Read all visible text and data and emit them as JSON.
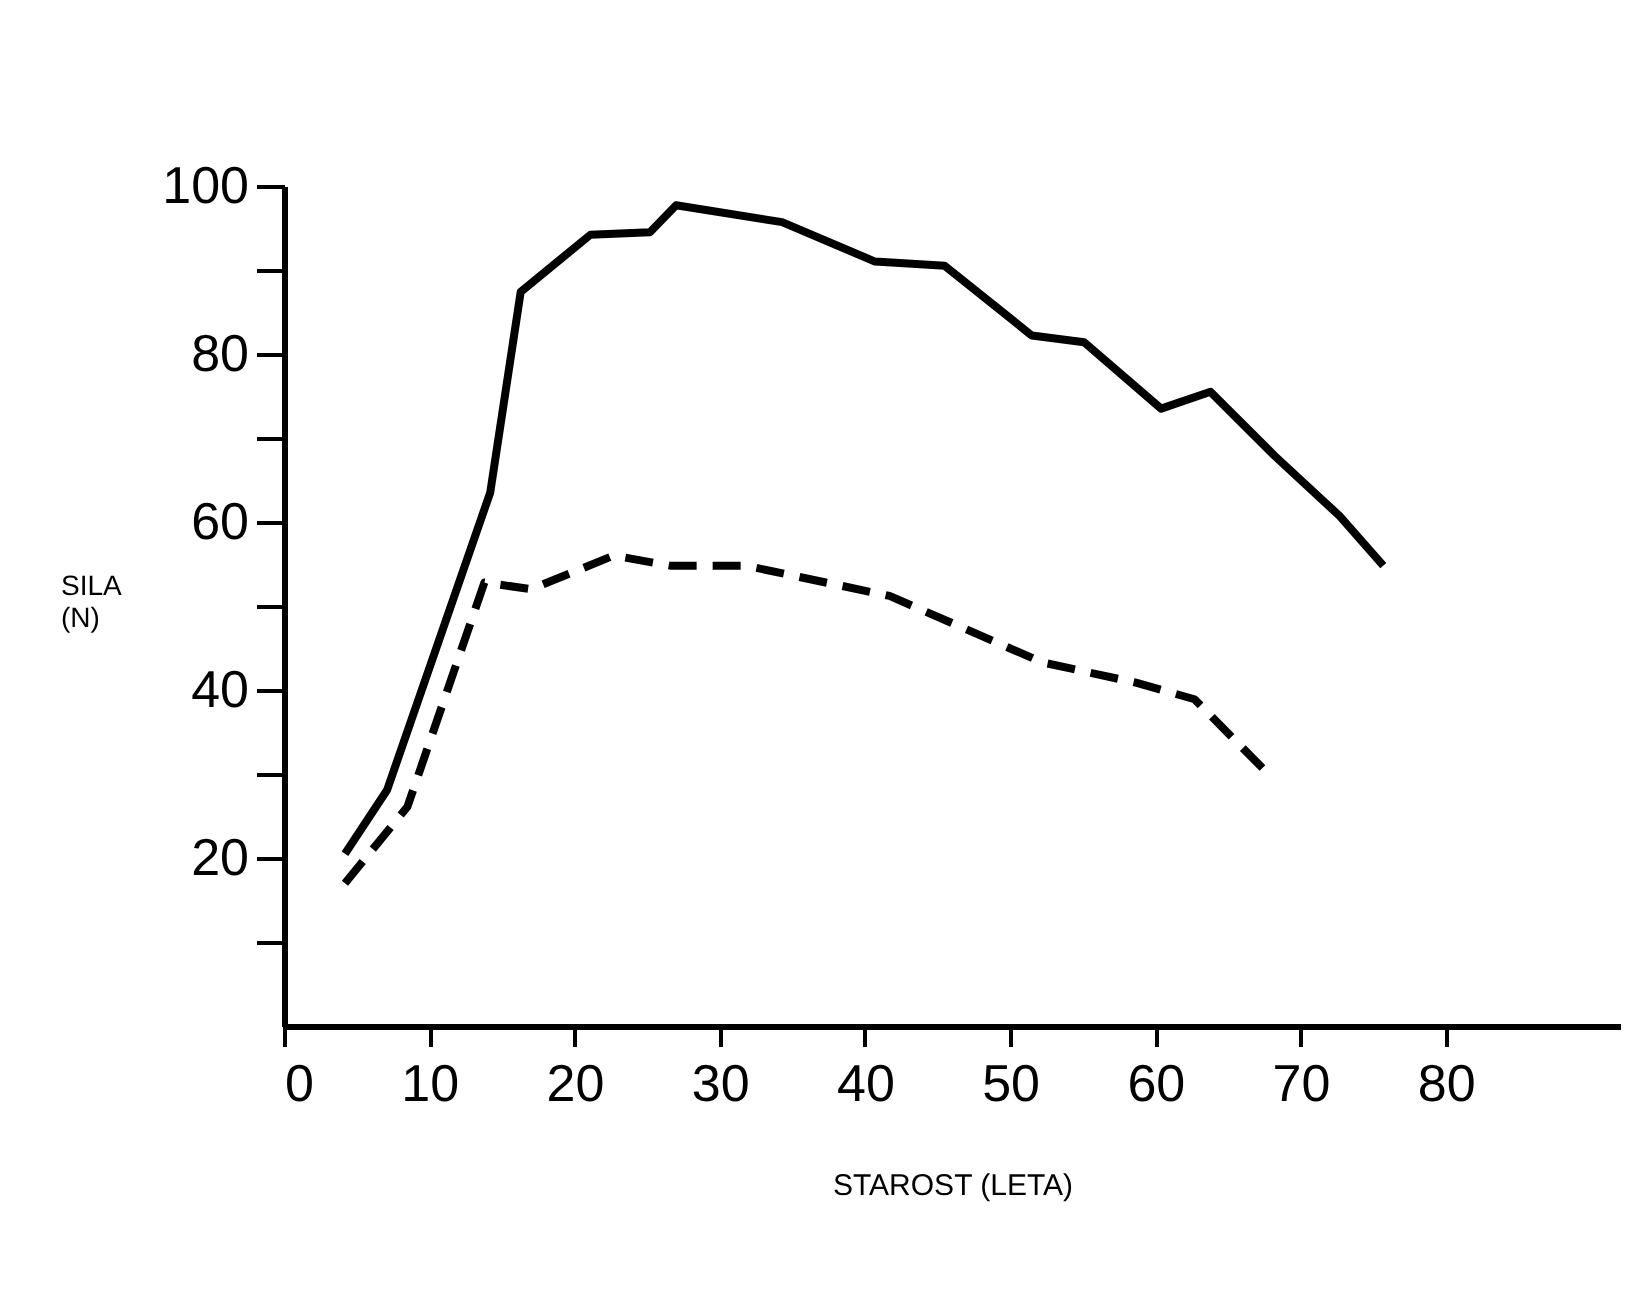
{
  "chart_data": {
    "type": "line",
    "xlabel": "STAROST (LETA)",
    "ylabel": "SILA (N)",
    "xlim": [
      0,
      92
    ],
    "ylim": [
      0,
      100
    ],
    "xticks": [
      0,
      10,
      20,
      30,
      40,
      50,
      60,
      70,
      80
    ],
    "yticks": [
      {
        "value": 10,
        "label": null
      },
      20,
      {
        "value": 30,
        "label": null
      },
      40,
      {
        "value": 50,
        "label": null
      },
      60,
      {
        "value": 70,
        "label": null
      },
      80,
      {
        "value": 90,
        "label": null
      },
      100
    ],
    "grid": false,
    "marker": "none",
    "series": [
      {
        "color": "#000000",
        "line_style": "solid",
        "x": [
          4.2,
          7.1,
          14.2,
          16.3,
          21.1,
          25.2,
          27.0,
          34.3,
          40.7,
          45.5,
          51.5,
          55.1,
          60.4,
          63.8,
          68.2,
          72.7,
          75.7
        ],
        "values": [
          20.5,
          28.1,
          63.5,
          87.4,
          94.2,
          94.5,
          97.7,
          95.7,
          91.0,
          90.5,
          82.2,
          81.4,
          73.5,
          75.5,
          67.9,
          60.7,
          54.8
        ]
      },
      {
        "color": "#000000",
        "line_style": "dashed",
        "x": [
          4.2,
          8.5,
          13.8,
          17.0,
          22.7,
          26.6,
          31.8,
          41.7,
          52.2,
          58.6,
          62.7,
          67.9
        ],
        "values": [
          17.0,
          26.1,
          52.8,
          52.0,
          56.0,
          54.8,
          54.8,
          51.2,
          43.3,
          40.9,
          38.9,
          29.8
        ]
      }
    ]
  }
}
